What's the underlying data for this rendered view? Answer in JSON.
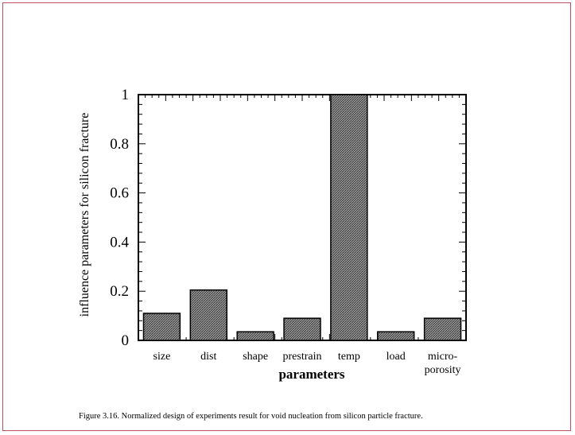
{
  "caption": "Figure 3.16. Normalized design of experiments result for void  nucleation from silicon particle fracture.",
  "chart_data": {
    "type": "bar",
    "categories": [
      [
        "size"
      ],
      [
        "dist"
      ],
      [
        "shape"
      ],
      [
        "prestrain"
      ],
      [
        "temp"
      ],
      [
        "load"
      ],
      [
        "micro-",
        "porosity"
      ]
    ],
    "values": [
      0.11,
      0.205,
      0.035,
      0.09,
      1.0,
      0.035,
      0.09
    ],
    "title": "",
    "xlabel": "parameters",
    "ylabel": "influence parameters for silicon fracture",
    "ylim": [
      0,
      1
    ],
    "yticks": [
      0,
      0.2,
      0.4,
      0.6,
      0.8,
      1
    ],
    "ytick_labels": [
      "0",
      "0.2",
      "0.4",
      "0.6",
      "0.8",
      "1"
    ],
    "grid": false,
    "bar_color": "#7a7a7a",
    "bar_fill": "hatched"
  }
}
